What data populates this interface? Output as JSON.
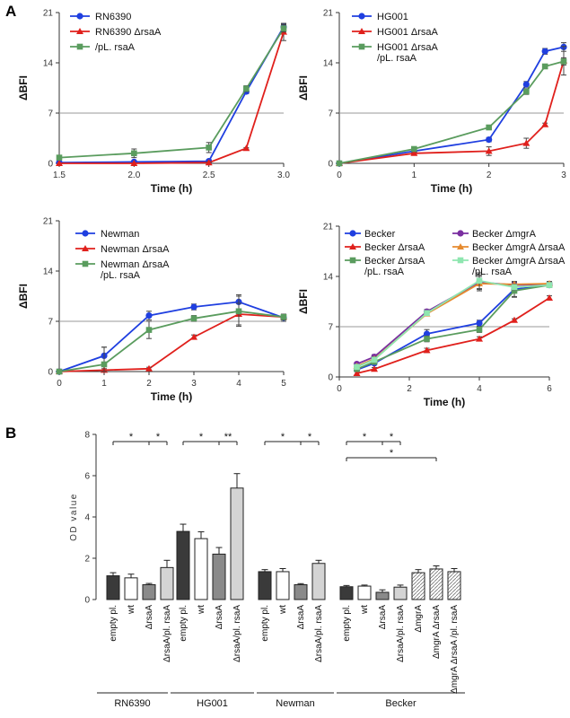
{
  "figure": {
    "panel_a": "A",
    "panel_b": "B",
    "line_xlabel": "Time (h)",
    "line_ylabel": "ΔBFI",
    "bar_ylabel": "OD value"
  },
  "colors": {
    "blue": "#1f3fe0",
    "red": "#e0201c",
    "green": "#5a9c5e",
    "purple": "#7a2fa0",
    "orange": "#e68a2e",
    "lightgreen": "#8fe6b0",
    "bar_dark": "#3a3a3a",
    "bar_white": "#ffffff",
    "bar_mid": "#8a8a8a",
    "bar_light": "#d4d4d4",
    "threshold": "#9a9a9a"
  },
  "chart_data": [
    {
      "type": "line",
      "id": "rn6390",
      "xlabel": "Time (h)",
      "ylabel": "ΔBFI",
      "xlim": [
        1.5,
        3.0
      ],
      "ylim": [
        0,
        21
      ],
      "xticks": [
        "1.5",
        "2.0",
        "2.5",
        "3.0"
      ],
      "yticks": [
        "0",
        "7",
        "14",
        "21"
      ],
      "threshold": 7,
      "series": [
        {
          "name": "RN6390",
          "color": "blue",
          "marker": "circle",
          "x": [
            1.5,
            2.0,
            2.5,
            2.75,
            3.0
          ],
          "y": [
            0.1,
            0.2,
            0.3,
            10.0,
            19.0
          ],
          "err": [
            0,
            0,
            0.2,
            0.3,
            0.4
          ]
        },
        {
          "name": "RN6390 ΔrsaA",
          "color": "red",
          "marker": "triangle",
          "x": [
            1.5,
            2.0,
            2.5,
            2.75,
            3.0
          ],
          "y": [
            0.0,
            0.0,
            0.1,
            2.1,
            18.3
          ],
          "err": [
            0,
            0,
            0.1,
            0.1,
            1.2
          ]
        },
        {
          "name": "RN6390 ΔrsaA /pL. rsaA",
          "color": "green",
          "marker": "square",
          "x": [
            1.5,
            2.0,
            2.5,
            2.75,
            3.0
          ],
          "y": [
            0.8,
            1.4,
            2.2,
            10.4,
            18.8
          ],
          "err": [
            0,
            0.6,
            0.7,
            0.4,
            0.5
          ]
        }
      ],
      "legend": [
        "RN6390",
        "RN6390 ΔrsaA",
        "/pL. rsaA"
      ]
    },
    {
      "type": "line",
      "id": "hg001",
      "xlabel": "Time (h)",
      "ylabel": "ΔBFI",
      "xlim": [
        0,
        3
      ],
      "ylim": [
        0,
        21
      ],
      "xticks": [
        "0",
        "1",
        "2",
        "3"
      ],
      "yticks": [
        "0",
        "7",
        "14",
        "21"
      ],
      "threshold": 7,
      "series": [
        {
          "name": "HG001",
          "color": "blue",
          "marker": "circle",
          "x": [
            0,
            1,
            2,
            2.5,
            2.75,
            3.0
          ],
          "y": [
            0,
            1.7,
            3.3,
            11.0,
            15.6,
            16.2
          ],
          "err": [
            0,
            0.2,
            0.3,
            0.4,
            0.4,
            0.6
          ]
        },
        {
          "name": "HG001 ΔrsaA",
          "color": "red",
          "marker": "triangle",
          "x": [
            0,
            1,
            2,
            2.5,
            2.75,
            3.0
          ],
          "y": [
            0,
            1.4,
            1.7,
            2.8,
            5.4,
            14.3
          ],
          "err": [
            0,
            0.2,
            0.6,
            0.7,
            0.2,
            2.0
          ]
        },
        {
          "name": "HG001 ΔrsaA /pL. rsaA",
          "color": "green",
          "marker": "square",
          "x": [
            0,
            1,
            2,
            2.5,
            2.75,
            3.0
          ],
          "y": [
            0,
            2.0,
            5.0,
            10.0,
            13.5,
            14.2
          ],
          "err": [
            0,
            0.3,
            0.3,
            0.4,
            0.3,
            0.5
          ]
        }
      ],
      "legend": [
        "HG001",
        "HG001 ΔrsaA",
        "HG001 ΔrsaA",
        "/pL. rsaA"
      ]
    },
    {
      "type": "line",
      "id": "newman",
      "xlabel": "Time (h)",
      "ylabel": "ΔBFI",
      "xlim": [
        0,
        5
      ],
      "ylim": [
        0,
        21
      ],
      "xticks": [
        "0",
        "1",
        "2",
        "3",
        "4",
        "5"
      ],
      "yticks": [
        "0",
        "7",
        "14",
        "21"
      ],
      "threshold": 7,
      "series": [
        {
          "name": "Newman",
          "color": "blue",
          "marker": "circle",
          "x": [
            0,
            1,
            2,
            3,
            4,
            5
          ],
          "y": [
            0,
            2.2,
            7.8,
            9.0,
            9.7,
            7.5
          ],
          "err": [
            0,
            1.2,
            0.6,
            0.4,
            1.0,
            0.5
          ]
        },
        {
          "name": "Newman ΔrsaA",
          "color": "red",
          "marker": "triangle",
          "x": [
            0,
            1,
            2,
            3,
            4,
            5
          ],
          "y": [
            0,
            0.2,
            0.4,
            4.8,
            8.0,
            7.6
          ],
          "err": [
            0,
            0.2,
            0.2,
            0.3,
            1.5,
            0.4
          ]
        },
        {
          "name": "Newman ΔrsaA /pL. rsaA",
          "color": "green",
          "marker": "square",
          "x": [
            0,
            1,
            2,
            3,
            4,
            5
          ],
          "y": [
            0,
            1.0,
            5.8,
            7.4,
            8.4,
            7.6
          ],
          "err": [
            0,
            2.4,
            1.2,
            0.4,
            2.1,
            0.4
          ]
        }
      ],
      "legend": [
        "Newman",
        "Newman ΔrsaA",
        "Newman ΔrsaA",
        "/pL. rsaA"
      ]
    },
    {
      "type": "line",
      "id": "becker",
      "xlabel": "Time (h)",
      "ylabel": "ΔBFI",
      "xlim": [
        0,
        6
      ],
      "ylim": [
        0,
        21
      ],
      "xticks": [
        "0",
        "2",
        "4",
        "6"
      ],
      "yticks": [
        "0",
        "7",
        "14",
        "21"
      ],
      "threshold": 7,
      "series": [
        {
          "name": "Becker",
          "color": "blue",
          "marker": "circle",
          "x": [
            0.5,
            1,
            2.5,
            4,
            5,
            6
          ],
          "y": [
            1.0,
            1.9,
            6.0,
            7.5,
            12.2,
            12.8
          ],
          "err": [
            0,
            0.2,
            0.6,
            0.4,
            1.0,
            0.3
          ]
        },
        {
          "name": "Becker ΔrsaA",
          "color": "red",
          "marker": "triangle",
          "x": [
            0.5,
            1,
            2.5,
            4,
            5,
            6
          ],
          "y": [
            0.5,
            1.1,
            3.7,
            5.3,
            7.9,
            11.0
          ],
          "err": [
            0,
            0.2,
            0.3,
            0.3,
            0.2,
            0.3
          ]
        },
        {
          "name": "Becker ΔrsaA /pL. rsaA",
          "color": "green",
          "marker": "square",
          "x": [
            0.5,
            1,
            2.5,
            4,
            5,
            6
          ],
          "y": [
            1.1,
            2.1,
            5.3,
            6.6,
            12.0,
            12.8
          ],
          "err": [
            0,
            0.2,
            0.4,
            0.4,
            0.9,
            0.3
          ]
        },
        {
          "name": "Becker ΔmgrA",
          "color": "purple",
          "marker": "circle",
          "x": [
            0.5,
            1,
            2.5,
            4,
            5,
            6
          ],
          "y": [
            1.8,
            2.8,
            9.1,
            13.2,
            12.8,
            12.9
          ],
          "err": [
            0,
            0.3,
            0.3,
            1.0,
            0.4,
            0.3
          ]
        },
        {
          "name": "Becker ΔmgrA ΔrsaA",
          "color": "orange",
          "marker": "triangle",
          "x": [
            0.5,
            1,
            2.5,
            4,
            5,
            6
          ],
          "y": [
            1.5,
            2.5,
            8.8,
            13.0,
            12.9,
            13.0
          ],
          "err": [
            0,
            0.3,
            0.3,
            1.0,
            0.4,
            0.3
          ]
        },
        {
          "name": "Becker ΔmgrA ΔrsaA /pL. rsaA",
          "color": "lightgreen",
          "marker": "square",
          "x": [
            0.5,
            1,
            2.5,
            4,
            5,
            6
          ],
          "y": [
            1.4,
            2.4,
            8.9,
            13.4,
            12.5,
            12.8
          ],
          "err": [
            0,
            0.3,
            0.3,
            1.1,
            0.4,
            0.3
          ]
        }
      ],
      "legend": [
        "Becker",
        "Becker ΔrsaA",
        "Becker ΔrsaA",
        "/pL. rsaA",
        "Becker ΔmgrA",
        "Becker ΔmgrA ΔrsaA",
        "Becker ΔmgrA ΔrsaA",
        "/pL. rsaA"
      ]
    },
    {
      "type": "bar",
      "id": "od",
      "ylabel": "OD value",
      "ylim": [
        0,
        8
      ],
      "yticks": [
        "0",
        "2",
        "4",
        "6",
        "8"
      ],
      "groups": [
        {
          "name": "RN6390",
          "bars": [
            {
              "label": "empty pl.",
              "value": 1.15,
              "err": 0.15,
              "fill": "dark"
            },
            {
              "label": "wt",
              "value": 1.05,
              "err": 0.18,
              "fill": "white"
            },
            {
              "label": "ΔrsaA",
              "value": 0.72,
              "err": 0.06,
              "fill": "mid"
            },
            {
              "label": "ΔrsaA/pl. rsaA",
              "value": 1.55,
              "err": 0.35,
              "fill": "light"
            }
          ]
        },
        {
          "name": "HG001",
          "bars": [
            {
              "label": "empty pl.",
              "value": 3.3,
              "err": 0.35,
              "fill": "dark"
            },
            {
              "label": "wt",
              "value": 2.95,
              "err": 0.33,
              "fill": "white"
            },
            {
              "label": "ΔrsaA",
              "value": 2.2,
              "err": 0.32,
              "fill": "mid"
            },
            {
              "label": "ΔrsaA/pl. rsaA",
              "value": 5.4,
              "err": 0.7,
              "fill": "light"
            }
          ]
        },
        {
          "name": "Newman",
          "bars": [
            {
              "label": "empty pl.",
              "value": 1.35,
              "err": 0.1,
              "fill": "dark"
            },
            {
              "label": "wt",
              "value": 1.35,
              "err": 0.15,
              "fill": "white"
            },
            {
              "label": "ΔrsaA",
              "value": 0.72,
              "err": 0.05,
              "fill": "mid"
            },
            {
              "label": "ΔrsaA/pl. rsaA",
              "value": 1.75,
              "err": 0.15,
              "fill": "light"
            }
          ]
        },
        {
          "name": "Becker",
          "bars": [
            {
              "label": "empty pl.",
              "value": 0.62,
              "err": 0.06,
              "fill": "dark"
            },
            {
              "label": "wt",
              "value": 0.65,
              "err": 0.05,
              "fill": "white"
            },
            {
              "label": "ΔrsaA",
              "value": 0.35,
              "err": 0.12,
              "fill": "mid"
            },
            {
              "label": "ΔrsaA/pl. rsaA",
              "value": 0.6,
              "err": 0.1,
              "fill": "light"
            },
            {
              "label": "ΔmgrA",
              "value": 1.3,
              "err": 0.15,
              "fill": "hatch"
            },
            {
              "label": "ΔmgrA ΔrsaA",
              "value": 1.48,
              "err": 0.15,
              "fill": "hatch"
            },
            {
              "label": "ΔmgrA ΔrsaA /pl. rsaA",
              "value": 1.35,
              "err": 0.15,
              "fill": "hatch"
            }
          ]
        }
      ],
      "significance": [
        {
          "group": "RN6390",
          "stars": [
            "*",
            "*"
          ]
        },
        {
          "group": "HG001",
          "stars": [
            "*",
            "**"
          ]
        },
        {
          "group": "Newman",
          "stars": [
            "*",
            "*"
          ]
        },
        {
          "group": "Becker",
          "stars": [
            "*",
            "*",
            "*"
          ]
        }
      ]
    }
  ]
}
